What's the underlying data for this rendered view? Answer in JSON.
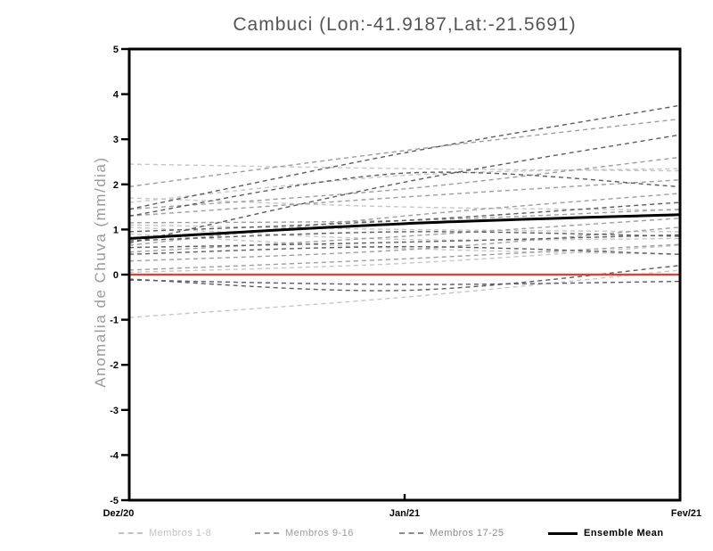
{
  "title": "Cambuci (Lon:-41.9187,Lat:-21.5691)",
  "chart_data": {
    "type": "line",
    "title": "Cambuci (Lon:-41.9187,Lat:-21.5691)",
    "xlabel": "",
    "ylabel": "Anomalia de Chuva (mm/dia)",
    "x_categories": [
      "Dez/20",
      "Jan/21",
      "Fev/21"
    ],
    "ylim": [
      -5,
      5
    ],
    "yticks": [
      5,
      4,
      3,
      2,
      1,
      0,
      -1,
      -2,
      -3,
      -4,
      -5
    ],
    "grid": false,
    "frame_color": "#000000",
    "legend_position": "bottom",
    "groups": [
      {
        "label": "Membros 1-8",
        "color": "#c6c6c6",
        "style": "dashed",
        "width": 1.4
      },
      {
        "label": "Membros 9-16",
        "color": "#9e9e9e",
        "style": "dashed",
        "width": 1.4
      },
      {
        "label": "Membros 17-25",
        "color": "#5c5c5c",
        "style": "dashed",
        "width": 1.4
      },
      {
        "label": "Ensemble Mean",
        "color": "#000000",
        "style": "solid",
        "width": 3
      }
    ],
    "series": [
      {
        "name": "Membro 1",
        "group": 0,
        "values": [
          2.45,
          2.35,
          2.3
        ]
      },
      {
        "name": "Membro 2",
        "group": 0,
        "values": [
          1.7,
          1.5,
          1.43
        ]
      },
      {
        "name": "Membro 3",
        "group": 0,
        "values": [
          1.6,
          2.2,
          2.35
        ]
      },
      {
        "name": "Membro 4",
        "group": 0,
        "values": [
          1.1,
          1.0,
          0.95
        ]
      },
      {
        "name": "Membro 5",
        "group": 0,
        "values": [
          1.05,
          0.78,
          0.8
        ]
      },
      {
        "name": "Membro 6",
        "group": 0,
        "values": [
          0.9,
          0.58,
          0.45
        ]
      },
      {
        "name": "Membro 7",
        "group": 0,
        "values": [
          0.05,
          0.25,
          0.65
        ]
      },
      {
        "name": "Membro 8",
        "group": 0,
        "values": [
          -0.95,
          -0.5,
          0.1
        ]
      },
      {
        "name": "Membro 9",
        "group": 1,
        "values": [
          1.95,
          2.75,
          3.45
        ]
      },
      {
        "name": "Membro 10",
        "group": 1,
        "values": [
          1.45,
          1.9,
          2.6
        ]
      },
      {
        "name": "Membro 11",
        "group": 1,
        "values": [
          1.3,
          1.72,
          2.1
        ]
      },
      {
        "name": "Membro 12",
        "group": 1,
        "values": [
          1.15,
          1.2,
          1.45
        ]
      },
      {
        "name": "Membro 13",
        "group": 1,
        "values": [
          0.65,
          1.3,
          1.8
        ]
      },
      {
        "name": "Membro 14",
        "group": 1,
        "values": [
          0.5,
          0.85,
          1.25
        ]
      },
      {
        "name": "Membro 15",
        "group": 1,
        "values": [
          0.3,
          0.55,
          1.05
        ]
      },
      {
        "name": "Membro 16",
        "group": 1,
        "values": [
          0.1,
          0.35,
          0.67
        ]
      },
      {
        "name": "Membro 17",
        "group": 2,
        "values": [
          1.45,
          2.7,
          3.75
        ]
      },
      {
        "name": "Membro 18",
        "group": 2,
        "values": [
          0.7,
          2.05,
          3.1
        ]
      },
      {
        "name": "Membro 19",
        "group": 2,
        "values": [
          1.3,
          2.25,
          1.95
        ]
      },
      {
        "name": "Membro 20",
        "group": 2,
        "values": [
          0.95,
          1.2,
          1.6
        ]
      },
      {
        "name": "Membro 21",
        "group": 2,
        "values": [
          0.75,
          0.95,
          0.85
        ]
      },
      {
        "name": "Membro 22",
        "group": 2,
        "values": [
          0.6,
          0.72,
          0.88
        ]
      },
      {
        "name": "Membro 23",
        "group": 2,
        "values": [
          0.45,
          0.62,
          0.45
        ]
      },
      {
        "name": "Membro 24",
        "group": 2,
        "values": [
          -0.1,
          -0.35,
          0.2
        ]
      },
      {
        "name": "Membro 25",
        "group": 2,
        "values": [
          -0.12,
          -0.22,
          -0.15
        ]
      },
      {
        "name": "zero-reference",
        "color": "#ee3a2d",
        "style": "solid",
        "width": 2.2,
        "values": [
          0,
          0,
          0
        ]
      },
      {
        "name": "Ensemble Mean",
        "group": 3,
        "values": [
          0.8,
          1.13,
          1.33
        ]
      }
    ],
    "legend_entries": [
      {
        "label": "Membros 1-8",
        "color": "#c2c2c2",
        "style": "dashed",
        "bold": false
      },
      {
        "label": "Membros 9-16",
        "color": "#9c9c9c",
        "style": "dashed",
        "bold": false
      },
      {
        "label": "Membros 17-25",
        "color": "#8a8a8a",
        "style": "dashed",
        "bold": false
      },
      {
        "label": "Ensemble Mean",
        "color": "#000000",
        "style": "solid",
        "bold": true
      }
    ]
  }
}
